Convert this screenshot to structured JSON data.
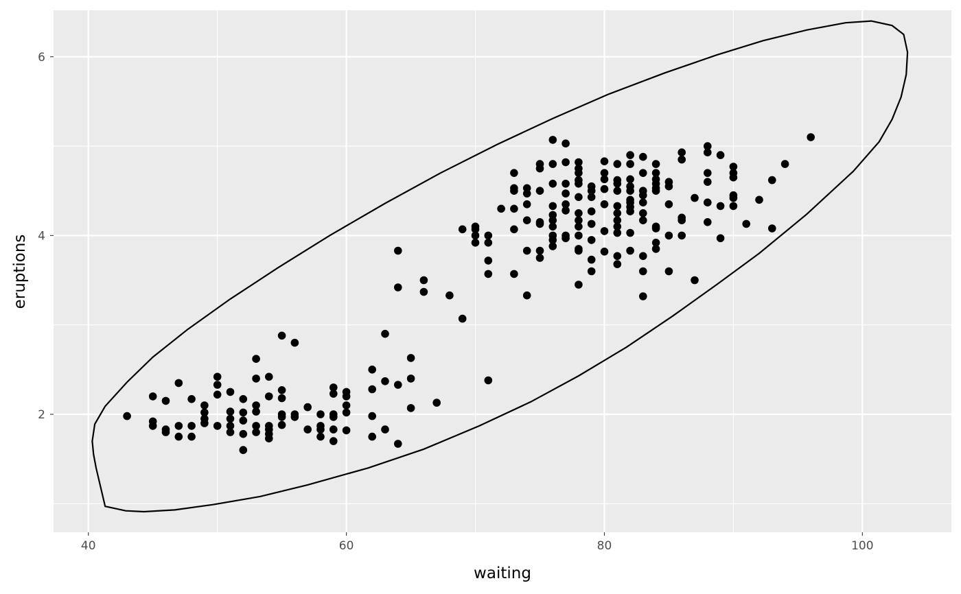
{
  "chart_data": {
    "type": "scatter",
    "title": "",
    "xlabel": "waiting",
    "ylabel": "eruptions",
    "xlim": [
      37.3,
      106.9
    ],
    "ylim": [
      0.68,
      6.52
    ],
    "x_ticks": [
      40,
      60,
      80,
      100
    ],
    "y_ticks": [
      2,
      4,
      6
    ],
    "grid": true,
    "legend": "none",
    "colors": {
      "panel": "#ebebeb",
      "grid": "#ffffff",
      "point": "#000000",
      "ellipse": "#000000"
    },
    "points": [
      [
        43,
        1.98
      ],
      [
        45,
        2.2
      ],
      [
        45,
        1.92
      ],
      [
        45,
        1.87
      ],
      [
        46,
        2.15
      ],
      [
        46,
        1.83
      ],
      [
        46,
        1.8
      ],
      [
        47,
        2.35
      ],
      [
        47,
        1.87
      ],
      [
        47,
        1.75
      ],
      [
        48,
        2.17
      ],
      [
        48,
        1.87
      ],
      [
        48,
        1.75
      ],
      [
        49,
        2.1
      ],
      [
        49,
        2.02
      ],
      [
        49,
        1.95
      ],
      [
        49,
        1.9
      ],
      [
        50,
        2.42
      ],
      [
        50,
        2.33
      ],
      [
        50,
        2.22
      ],
      [
        50,
        1.87
      ],
      [
        51,
        2.25
      ],
      [
        51,
        2.03
      ],
      [
        51,
        1.95
      ],
      [
        51,
        1.87
      ],
      [
        51,
        1.8
      ],
      [
        52,
        2.17
      ],
      [
        52,
        2.02
      ],
      [
        52,
        1.93
      ],
      [
        52,
        1.78
      ],
      [
        52,
        1.6
      ],
      [
        53,
        2.62
      ],
      [
        53,
        2.4
      ],
      [
        53,
        2.1
      ],
      [
        53,
        2.03
      ],
      [
        53,
        1.87
      ],
      [
        53,
        1.8
      ],
      [
        54,
        2.42
      ],
      [
        54,
        2.2
      ],
      [
        54,
        1.87
      ],
      [
        54,
        1.83
      ],
      [
        54,
        1.78
      ],
      [
        54,
        1.73
      ],
      [
        55,
        2.88
      ],
      [
        55,
        2.27
      ],
      [
        55,
        2.18
      ],
      [
        55,
        2.0
      ],
      [
        55,
        1.97
      ],
      [
        55,
        1.88
      ],
      [
        56,
        2.8
      ],
      [
        56,
        2.0
      ],
      [
        56,
        1.97
      ],
      [
        57,
        2.08
      ],
      [
        57,
        1.83
      ],
      [
        58,
        2.0
      ],
      [
        58,
        1.87
      ],
      [
        58,
        1.83
      ],
      [
        58,
        1.75
      ],
      [
        59,
        2.3
      ],
      [
        59,
        2.23
      ],
      [
        59,
        2.0
      ],
      [
        59,
        1.97
      ],
      [
        59,
        1.83
      ],
      [
        59,
        1.7
      ],
      [
        60,
        2.25
      ],
      [
        60,
        2.2
      ],
      [
        60,
        2.1
      ],
      [
        60,
        2.02
      ],
      [
        60,
        1.82
      ],
      [
        62,
        2.5
      ],
      [
        62,
        2.28
      ],
      [
        62,
        1.98
      ],
      [
        62,
        1.75
      ],
      [
        63,
        2.9
      ],
      [
        63,
        2.37
      ],
      [
        63,
        1.83
      ],
      [
        64,
        3.83
      ],
      [
        64,
        3.42
      ],
      [
        64,
        2.33
      ],
      [
        64,
        1.67
      ],
      [
        65,
        2.63
      ],
      [
        65,
        2.4
      ],
      [
        65,
        2.07
      ],
      [
        66,
        3.5
      ],
      [
        66,
        3.37
      ],
      [
        67,
        2.13
      ],
      [
        68,
        3.33
      ],
      [
        69,
        4.07
      ],
      [
        69,
        3.07
      ],
      [
        70,
        4.1
      ],
      [
        70,
        4.07
      ],
      [
        70,
        4.0
      ],
      [
        70,
        3.92
      ],
      [
        71,
        4.0
      ],
      [
        71,
        3.92
      ],
      [
        71,
        3.72
      ],
      [
        71,
        3.57
      ],
      [
        71,
        2.38
      ],
      [
        72,
        4.3
      ],
      [
        73,
        4.7
      ],
      [
        73,
        4.53
      ],
      [
        73,
        4.5
      ],
      [
        73,
        4.3
      ],
      [
        73,
        4.07
      ],
      [
        73,
        3.57
      ],
      [
        74,
        4.53
      ],
      [
        74,
        4.47
      ],
      [
        74,
        4.35
      ],
      [
        74,
        4.17
      ],
      [
        74,
        3.83
      ],
      [
        74,
        3.33
      ],
      [
        75,
        4.8
      ],
      [
        75,
        4.75
      ],
      [
        75,
        4.5
      ],
      [
        75,
        4.15
      ],
      [
        75,
        4.13
      ],
      [
        75,
        3.83
      ],
      [
        75,
        3.75
      ],
      [
        76,
        5.07
      ],
      [
        76,
        4.8
      ],
      [
        76,
        4.58
      ],
      [
        76,
        4.33
      ],
      [
        76,
        4.23
      ],
      [
        76,
        4.17
      ],
      [
        76,
        4.1
      ],
      [
        76,
        4.0
      ],
      [
        76,
        3.95
      ],
      [
        76,
        3.88
      ],
      [
        77,
        5.03
      ],
      [
        77,
        4.82
      ],
      [
        77,
        4.58
      ],
      [
        77,
        4.47
      ],
      [
        77,
        4.35
      ],
      [
        77,
        4.28
      ],
      [
        77,
        4.0
      ],
      [
        77,
        3.97
      ],
      [
        78,
        4.82
      ],
      [
        78,
        4.75
      ],
      [
        78,
        4.7
      ],
      [
        78,
        4.62
      ],
      [
        78,
        4.58
      ],
      [
        78,
        4.43
      ],
      [
        78,
        4.25
      ],
      [
        78,
        4.17
      ],
      [
        78,
        4.1
      ],
      [
        78,
        4.0
      ],
      [
        78,
        3.85
      ],
      [
        78,
        3.83
      ],
      [
        78,
        3.45
      ],
      [
        79,
        4.55
      ],
      [
        79,
        4.5
      ],
      [
        79,
        4.43
      ],
      [
        79,
        4.27
      ],
      [
        79,
        4.13
      ],
      [
        79,
        3.95
      ],
      [
        79,
        3.73
      ],
      [
        79,
        3.6
      ],
      [
        80,
        4.83
      ],
      [
        80,
        4.7
      ],
      [
        80,
        4.63
      ],
      [
        80,
        4.52
      ],
      [
        80,
        4.35
      ],
      [
        80,
        4.05
      ],
      [
        80,
        3.82
      ],
      [
        81,
        4.8
      ],
      [
        81,
        4.62
      ],
      [
        81,
        4.58
      ],
      [
        81,
        4.5
      ],
      [
        81,
        4.33
      ],
      [
        81,
        4.25
      ],
      [
        81,
        4.17
      ],
      [
        81,
        4.1
      ],
      [
        81,
        4.03
      ],
      [
        81,
        3.77
      ],
      [
        81,
        3.68
      ],
      [
        82,
        4.9
      ],
      [
        82,
        4.8
      ],
      [
        82,
        4.63
      ],
      [
        82,
        4.55
      ],
      [
        82,
        4.5
      ],
      [
        82,
        4.4
      ],
      [
        82,
        4.37
      ],
      [
        82,
        4.32
      ],
      [
        82,
        4.27
      ],
      [
        82,
        4.03
      ],
      [
        82,
        3.83
      ],
      [
        83,
        4.88
      ],
      [
        83,
        4.7
      ],
      [
        83,
        4.5
      ],
      [
        83,
        4.45
      ],
      [
        83,
        4.37
      ],
      [
        83,
        4.25
      ],
      [
        83,
        4.17
      ],
      [
        83,
        3.77
      ],
      [
        83,
        3.6
      ],
      [
        83,
        3.32
      ],
      [
        84,
        4.8
      ],
      [
        84,
        4.7
      ],
      [
        84,
        4.63
      ],
      [
        84,
        4.58
      ],
      [
        84,
        4.53
      ],
      [
        84,
        4.5
      ],
      [
        84,
        4.1
      ],
      [
        84,
        4.08
      ],
      [
        84,
        3.92
      ],
      [
        84,
        3.85
      ],
      [
        85,
        4.6
      ],
      [
        85,
        4.55
      ],
      [
        85,
        4.35
      ],
      [
        85,
        4.0
      ],
      [
        85,
        3.6
      ],
      [
        86,
        4.93
      ],
      [
        86,
        4.85
      ],
      [
        86,
        4.2
      ],
      [
        86,
        4.17
      ],
      [
        86,
        4.0
      ],
      [
        87,
        4.42
      ],
      [
        87,
        3.5
      ],
      [
        88,
        5.0
      ],
      [
        88,
        4.93
      ],
      [
        88,
        4.7
      ],
      [
        88,
        4.6
      ],
      [
        88,
        4.37
      ],
      [
        88,
        4.15
      ],
      [
        89,
        4.9
      ],
      [
        89,
        4.33
      ],
      [
        89,
        3.97
      ],
      [
        90,
        4.77
      ],
      [
        90,
        4.7
      ],
      [
        90,
        4.65
      ],
      [
        90,
        4.45
      ],
      [
        90,
        4.42
      ],
      [
        90,
        4.33
      ],
      [
        91,
        4.13
      ],
      [
        92,
        4.4
      ],
      [
        93,
        4.62
      ],
      [
        93,
        4.08
      ],
      [
        94,
        4.8
      ],
      [
        96,
        5.1
      ]
    ],
    "ellipse": [
      [
        41.3,
        0.97
      ],
      [
        42.9,
        0.92
      ],
      [
        44.3,
        0.91
      ],
      [
        46.7,
        0.93
      ],
      [
        49.7,
        0.99
      ],
      [
        53.3,
        1.08
      ],
      [
        57,
        1.21
      ],
      [
        61.7,
        1.4
      ],
      [
        66,
        1.61
      ],
      [
        70.3,
        1.87
      ],
      [
        74.3,
        2.14
      ],
      [
        78,
        2.43
      ],
      [
        81.7,
        2.75
      ],
      [
        85.3,
        3.1
      ],
      [
        88.7,
        3.45
      ],
      [
        92,
        3.8
      ],
      [
        95.7,
        4.24
      ],
      [
        99.3,
        4.72
      ],
      [
        101.3,
        5.05
      ],
      [
        102.3,
        5.3
      ],
      [
        103,
        5.55
      ],
      [
        103.4,
        5.8
      ],
      [
        103.5,
        6.05
      ],
      [
        103.2,
        6.25
      ],
      [
        102.3,
        6.35
      ],
      [
        100.7,
        6.4
      ],
      [
        98.7,
        6.38
      ],
      [
        95.7,
        6.3
      ],
      [
        92.3,
        6.18
      ],
      [
        88.7,
        6.02
      ],
      [
        84.7,
        5.82
      ],
      [
        80.3,
        5.58
      ],
      [
        76,
        5.31
      ],
      [
        71.7,
        5.02
      ],
      [
        67.3,
        4.7
      ],
      [
        63,
        4.36
      ],
      [
        58.7,
        4.0
      ],
      [
        54.7,
        3.64
      ],
      [
        51,
        3.29
      ],
      [
        47.7,
        2.95
      ],
      [
        45,
        2.64
      ],
      [
        43,
        2.36
      ],
      [
        41.3,
        2.09
      ],
      [
        40.5,
        1.89
      ],
      [
        40.3,
        1.7
      ],
      [
        40.4,
        1.55
      ],
      [
        40.6,
        1.4
      ],
      [
        41.3,
        0.97
      ]
    ]
  }
}
